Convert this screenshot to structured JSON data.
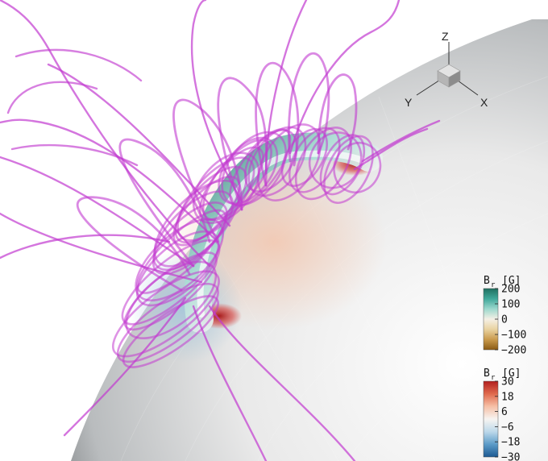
{
  "orientation_axes": {
    "z": "Z",
    "y": "Y",
    "x": "X"
  },
  "colorbar_top": {
    "quantity": "B",
    "subscript": "r",
    "unit": "[G]",
    "ticks": [
      "200",
      "100",
      "0",
      "−100",
      "−200"
    ],
    "colors": [
      "#1f6f5f",
      "#3fa89a",
      "#9cd8cd",
      "#f5f0e6",
      "#e9d2a0",
      "#c99a4c",
      "#8a5a14"
    ]
  },
  "colorbar_bottom": {
    "quantity": "B",
    "subscript": "r",
    "unit": "[G]",
    "ticks": [
      "30",
      "18",
      "6",
      "−6",
      "−18",
      "−30"
    ],
    "colors": [
      "#b21f1f",
      "#e06a4d",
      "#f6c0a6",
      "#f7f4f1",
      "#bcd8ea",
      "#5c9bc8",
      "#1d5a92"
    ]
  },
  "colors": {
    "field_lines": "#c23ad0",
    "flux_rope": "#5fb5a9",
    "sphere_dark": "#3b3f42",
    "sphere_light": "#e6e6e6",
    "footpoint": "#c0392b"
  }
}
